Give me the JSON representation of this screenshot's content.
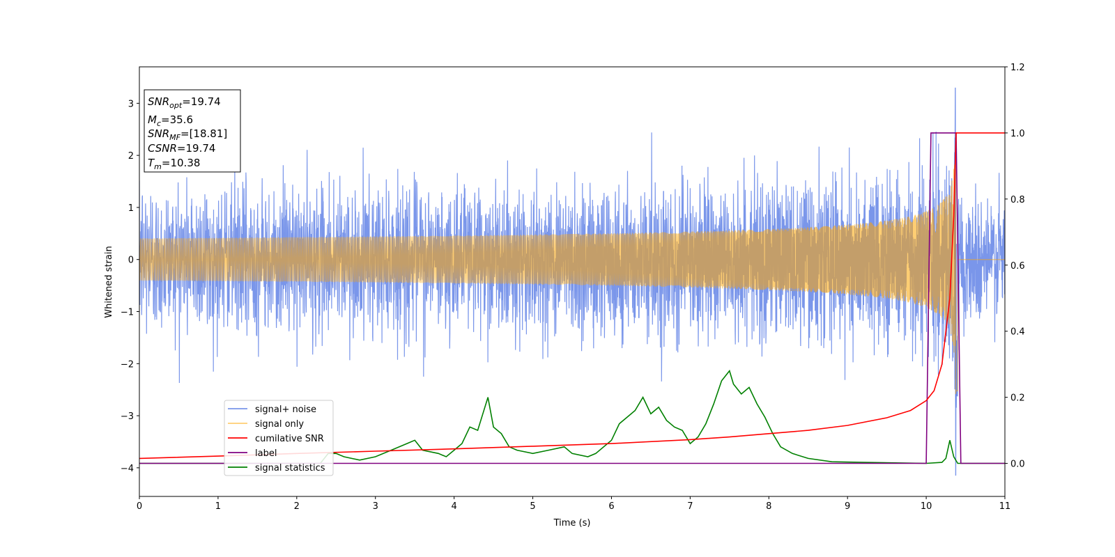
{
  "chart_data": {
    "type": "line",
    "xlabel": "Time (s)",
    "ylabel": "Whitened strain",
    "xlim": [
      0,
      11
    ],
    "ylim_left": [
      -4.55,
      3.7
    ],
    "ylim_right": [
      -0.1,
      1.2
    ],
    "xticks": [
      0,
      1,
      2,
      3,
      4,
      5,
      6,
      7,
      8,
      9,
      10,
      11
    ],
    "yticks_left": [
      -4,
      -3,
      -2,
      -1,
      0,
      1,
      2,
      3
    ],
    "yticks_right": [
      0.0,
      0.2,
      0.4,
      0.6,
      0.8,
      1.0,
      1.2
    ],
    "grid": false,
    "legend_position": "lower-left",
    "annotation": {
      "lines": [
        {
          "sym": "SNR",
          "sub": "opt",
          "value": "=19.74"
        },
        {
          "sym": "M",
          "sub": "c",
          "value": "=35.6"
        },
        {
          "sym": "SNR",
          "sub": "MF",
          "value": "=[18.81]"
        },
        {
          "sym": "CSNR",
          "sub": "",
          "value": "=19.74"
        },
        {
          "sym": "T",
          "sub": "m",
          "value": "=10.38"
        }
      ]
    },
    "series": [
      {
        "name": "signal+ noise",
        "axis": "left",
        "color": "#4169e1",
        "noise_sigma": 0.6,
        "spike_at": 10.37,
        "spike_max": 3.3,
        "spike_min": -4.15
      },
      {
        "name": "signal only",
        "axis": "left",
        "color": "#ffa500",
        "merger_time": 10.38,
        "peak_amplitude": 2.9
      },
      {
        "name": "cumilative SNR",
        "axis": "right",
        "color": "#ff0000",
        "points": [
          [
            0,
            0.015
          ],
          [
            1,
            0.022
          ],
          [
            2,
            0.03
          ],
          [
            3,
            0.037
          ],
          [
            4,
            0.044
          ],
          [
            5,
            0.052
          ],
          [
            6,
            0.06
          ],
          [
            7,
            0.072
          ],
          [
            7.5,
            0.08
          ],
          [
            8,
            0.09
          ],
          [
            8.5,
            0.1
          ],
          [
            9,
            0.115
          ],
          [
            9.5,
            0.138
          ],
          [
            9.8,
            0.16
          ],
          [
            10,
            0.19
          ],
          [
            10.1,
            0.22
          ],
          [
            10.2,
            0.3
          ],
          [
            10.3,
            0.5
          ],
          [
            10.35,
            0.75
          ],
          [
            10.38,
            1.0
          ],
          [
            11,
            1.0
          ]
        ]
      },
      {
        "name": "label",
        "axis": "right",
        "color": "#800080",
        "points": [
          [
            0,
            0
          ],
          [
            10,
            0
          ],
          [
            10.06,
            1.0
          ],
          [
            10.38,
            1.0
          ],
          [
            10.44,
            0
          ],
          [
            11,
            0
          ]
        ]
      },
      {
        "name": "signal statistics",
        "axis": "right",
        "color": "#008000",
        "points": [
          [
            0,
            0
          ],
          [
            2.3,
            0.0
          ],
          [
            2.4,
            0.03
          ],
          [
            2.5,
            0.03
          ],
          [
            2.6,
            0.02
          ],
          [
            2.8,
            0.01
          ],
          [
            3.0,
            0.02
          ],
          [
            3.2,
            0.04
          ],
          [
            3.4,
            0.06
          ],
          [
            3.5,
            0.07
          ],
          [
            3.6,
            0.04
          ],
          [
            3.8,
            0.03
          ],
          [
            3.9,
            0.02
          ],
          [
            4.0,
            0.04
          ],
          [
            4.1,
            0.06
          ],
          [
            4.2,
            0.11
          ],
          [
            4.3,
            0.1
          ],
          [
            4.43,
            0.2
          ],
          [
            4.5,
            0.11
          ],
          [
            4.6,
            0.09
          ],
          [
            4.7,
            0.05
          ],
          [
            4.8,
            0.04
          ],
          [
            5.0,
            0.03
          ],
          [
            5.2,
            0.04
          ],
          [
            5.4,
            0.05
          ],
          [
            5.5,
            0.03
          ],
          [
            5.7,
            0.02
          ],
          [
            5.8,
            0.03
          ],
          [
            6.0,
            0.07
          ],
          [
            6.1,
            0.12
          ],
          [
            6.2,
            0.14
          ],
          [
            6.3,
            0.16
          ],
          [
            6.4,
            0.2
          ],
          [
            6.5,
            0.15
          ],
          [
            6.6,
            0.17
          ],
          [
            6.7,
            0.13
          ],
          [
            6.8,
            0.11
          ],
          [
            6.9,
            0.1
          ],
          [
            7.0,
            0.06
          ],
          [
            7.1,
            0.08
          ],
          [
            7.2,
            0.12
          ],
          [
            7.3,
            0.18
          ],
          [
            7.4,
            0.25
          ],
          [
            7.5,
            0.28
          ],
          [
            7.55,
            0.24
          ],
          [
            7.65,
            0.21
          ],
          [
            7.75,
            0.23
          ],
          [
            7.85,
            0.18
          ],
          [
            7.95,
            0.14
          ],
          [
            8.05,
            0.09
          ],
          [
            8.15,
            0.05
          ],
          [
            8.3,
            0.03
          ],
          [
            8.5,
            0.015
          ],
          [
            8.8,
            0.005
          ],
          [
            9.2,
            0.003
          ],
          [
            10.0,
            0.0
          ],
          [
            10.2,
            0.003
          ],
          [
            10.25,
            0.015
          ],
          [
            10.3,
            0.07
          ],
          [
            10.35,
            0.02
          ],
          [
            10.4,
            0.0
          ],
          [
            11,
            0
          ]
        ]
      }
    ]
  }
}
